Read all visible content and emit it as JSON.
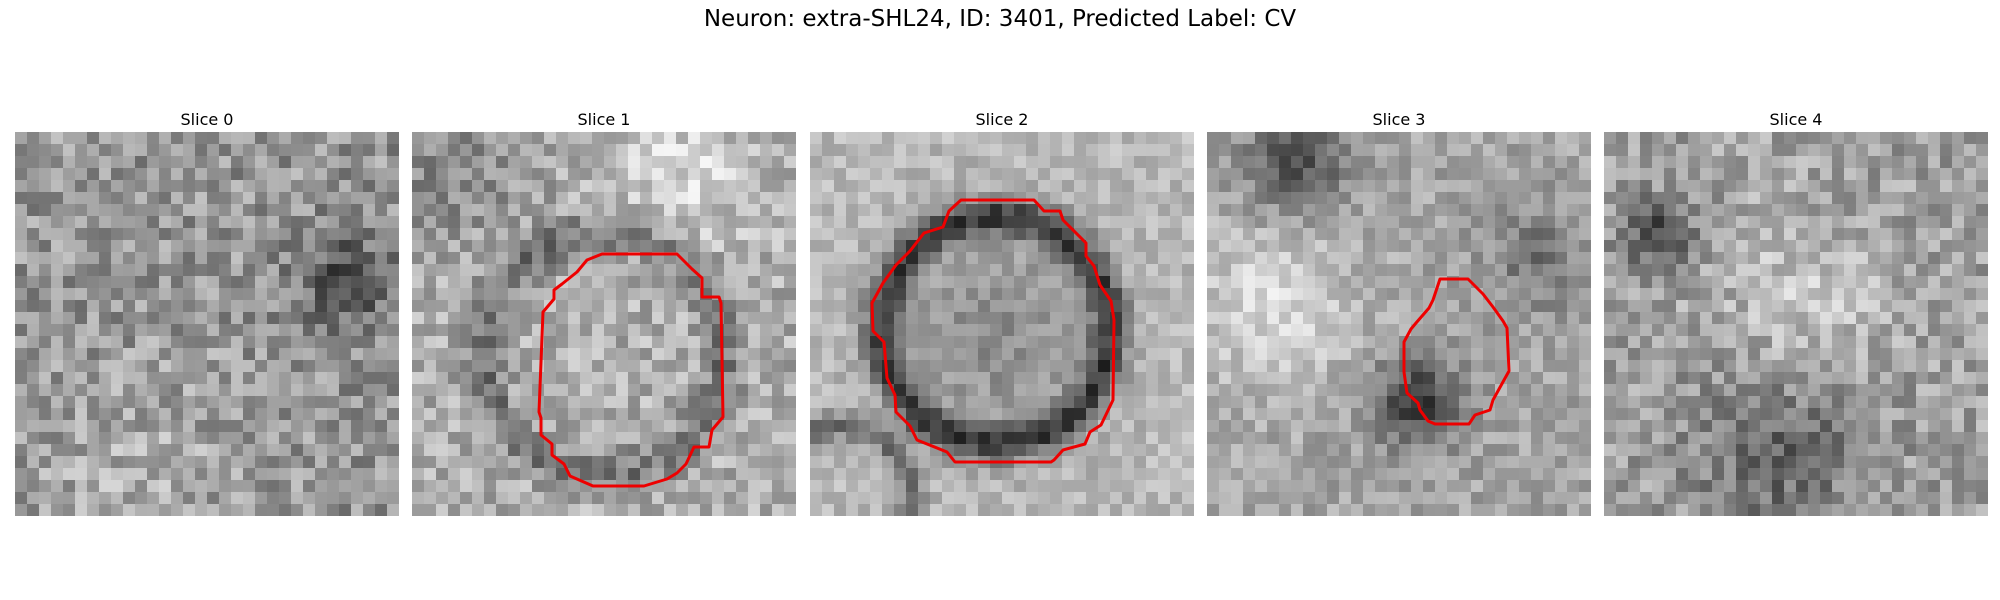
{
  "figure": {
    "title": "Neuron: extra-SHL24, ID: 3401, Predicted Label: CV"
  },
  "slices": [
    {
      "title": "Slice 0",
      "has_contour": false
    },
    {
      "title": "Slice 1",
      "has_contour": true
    },
    {
      "title": "Slice 2",
      "has_contour": true
    },
    {
      "title": "Slice 3",
      "has_contour": true
    },
    {
      "title": "Slice 4",
      "has_contour": false
    }
  ],
  "colors": {
    "contour": "#ff0000",
    "background": "#ffffff"
  }
}
